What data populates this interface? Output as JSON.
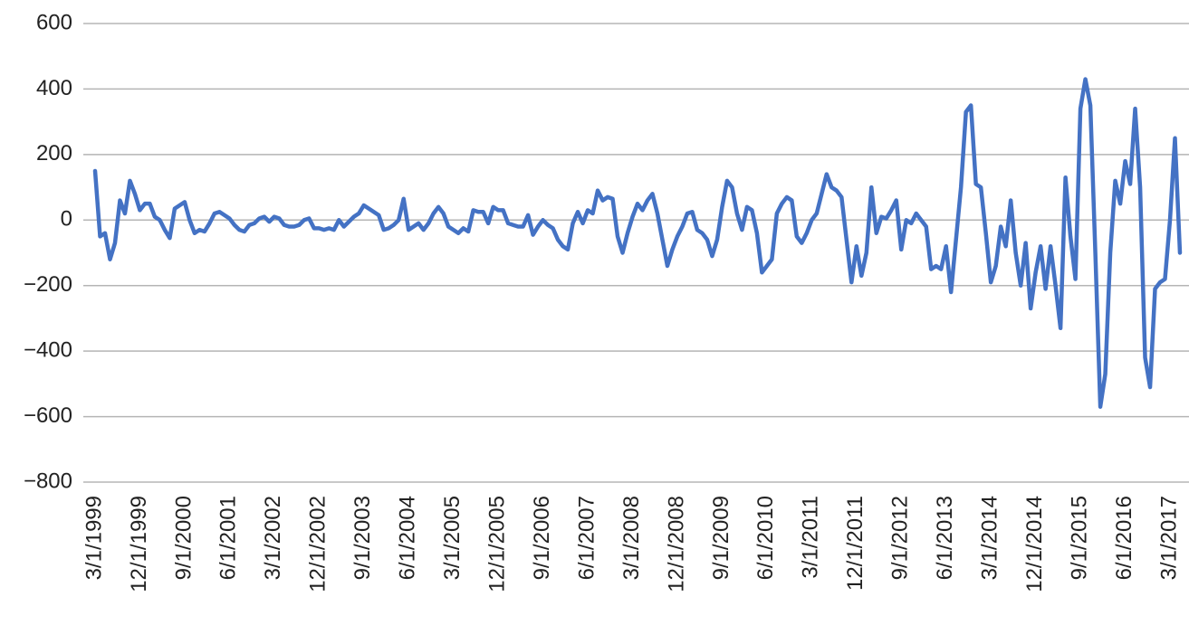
{
  "chart_data": {
    "type": "line",
    "categories": [
      "3/1/1999",
      null,
      null,
      null,
      null,
      null,
      null,
      null,
      null,
      "12/1/1999",
      null,
      null,
      null,
      null,
      null,
      null,
      null,
      null,
      "9/1/2000",
      null,
      null,
      null,
      null,
      null,
      null,
      null,
      null,
      "6/1/2001",
      null,
      null,
      null,
      null,
      null,
      null,
      null,
      null,
      "3/1/2002",
      null,
      null,
      null,
      null,
      null,
      null,
      null,
      null,
      "12/1/2002",
      null,
      null,
      null,
      null,
      null,
      null,
      null,
      null,
      "9/1/2003",
      null,
      null,
      null,
      null,
      null,
      null,
      null,
      null,
      "6/1/2004",
      null,
      null,
      null,
      null,
      null,
      null,
      null,
      null,
      "3/1/2005",
      null,
      null,
      null,
      null,
      null,
      null,
      null,
      null,
      "12/1/2005",
      null,
      null,
      null,
      null,
      null,
      null,
      null,
      null,
      "9/1/2006",
      null,
      null,
      null,
      null,
      null,
      null,
      null,
      null,
      "6/1/2007",
      null,
      null,
      null,
      null,
      null,
      null,
      null,
      null,
      "3/1/2008",
      null,
      null,
      null,
      null,
      null,
      null,
      null,
      null,
      "12/1/2008",
      null,
      null,
      null,
      null,
      null,
      null,
      null,
      null,
      "9/1/2009",
      null,
      null,
      null,
      null,
      null,
      null,
      null,
      null,
      "6/1/2010",
      null,
      null,
      null,
      null,
      null,
      null,
      null,
      null,
      "3/1/2011",
      null,
      null,
      null,
      null,
      null,
      null,
      null,
      null,
      "12/1/2011",
      null,
      null,
      null,
      null,
      null,
      null,
      null,
      null,
      "9/1/2012",
      null,
      null,
      null,
      null,
      null,
      null,
      null,
      null,
      "6/1/2013",
      null,
      null,
      null,
      null,
      null,
      null,
      null,
      null,
      "3/1/2014",
      null,
      null,
      null,
      null,
      null,
      null,
      null,
      null,
      "12/1/2014",
      null,
      null,
      null,
      null,
      null,
      null,
      null,
      null,
      "9/1/2015",
      null,
      null,
      null,
      null,
      null,
      null,
      null,
      null,
      "6/1/2016",
      null,
      null,
      null,
      null,
      null,
      null,
      null,
      null,
      "3/1/2017",
      null,
      null
    ],
    "values": [
      150,
      -50,
      -40,
      -120,
      -70,
      60,
      20,
      120,
      80,
      30,
      50,
      50,
      10,
      0,
      -30,
      -55,
      35,
      45,
      55,
      0,
      -40,
      -30,
      -35,
      -10,
      20,
      25,
      15,
      5,
      -15,
      -30,
      -35,
      -15,
      -10,
      5,
      10,
      -5,
      10,
      5,
      -15,
      -20,
      -20,
      -15,
      0,
      5,
      -25,
      -25,
      -30,
      -25,
      -30,
      0,
      -20,
      -5,
      10,
      20,
      45,
      35,
      25,
      15,
      -30,
      -25,
      -15,
      0,
      65,
      -30,
      -20,
      -10,
      -30,
      -10,
      20,
      40,
      20,
      -20,
      -30,
      -40,
      -25,
      -35,
      30,
      25,
      25,
      -10,
      40,
      30,
      30,
      -10,
      -15,
      -20,
      -20,
      15,
      -45,
      -20,
      0,
      -15,
      -25,
      -60,
      -80,
      -90,
      -10,
      25,
      -10,
      30,
      20,
      90,
      60,
      70,
      65,
      -50,
      -100,
      -40,
      10,
      50,
      30,
      60,
      80,
      20,
      -60,
      -140,
      -90,
      -50,
      -20,
      20,
      25,
      -30,
      -40,
      -60,
      -110,
      -60,
      40,
      120,
      100,
      20,
      -30,
      40,
      30,
      -40,
      -160,
      -140,
      -120,
      20,
      50,
      70,
      60,
      -50,
      -70,
      -40,
      0,
      20,
      80,
      140,
      100,
      90,
      70,
      -60,
      -190,
      -80,
      -170,
      -100,
      100,
      -40,
      10,
      5,
      30,
      60,
      -90,
      0,
      -10,
      20,
      0,
      -20,
      -150,
      -140,
      -150,
      -80,
      -220,
      -60,
      100,
      330,
      350,
      110,
      100,
      -40,
      -190,
      -140,
      -20,
      -80,
      60,
      -100,
      -200,
      -70,
      -270,
      -160,
      -80,
      -210,
      -80,
      -200,
      -330,
      130,
      -50,
      -180,
      340,
      430,
      350,
      -100,
      -570,
      -470,
      -100,
      120,
      50,
      180,
      110,
      340,
      100,
      -420,
      -510,
      -210,
      -190,
      -180,
      0,
      250,
      -100
    ],
    "color": "#4472c4",
    "ylim": [
      -800,
      600
    ],
    "yticks": [
      {
        "value": -800,
        "label": "−800"
      },
      {
        "value": -600,
        "label": "−600"
      },
      {
        "value": -400,
        "label": "−400"
      },
      {
        "value": -200,
        "label": "−200"
      },
      0,
      200,
      400,
      600
    ],
    "grid": true
  }
}
